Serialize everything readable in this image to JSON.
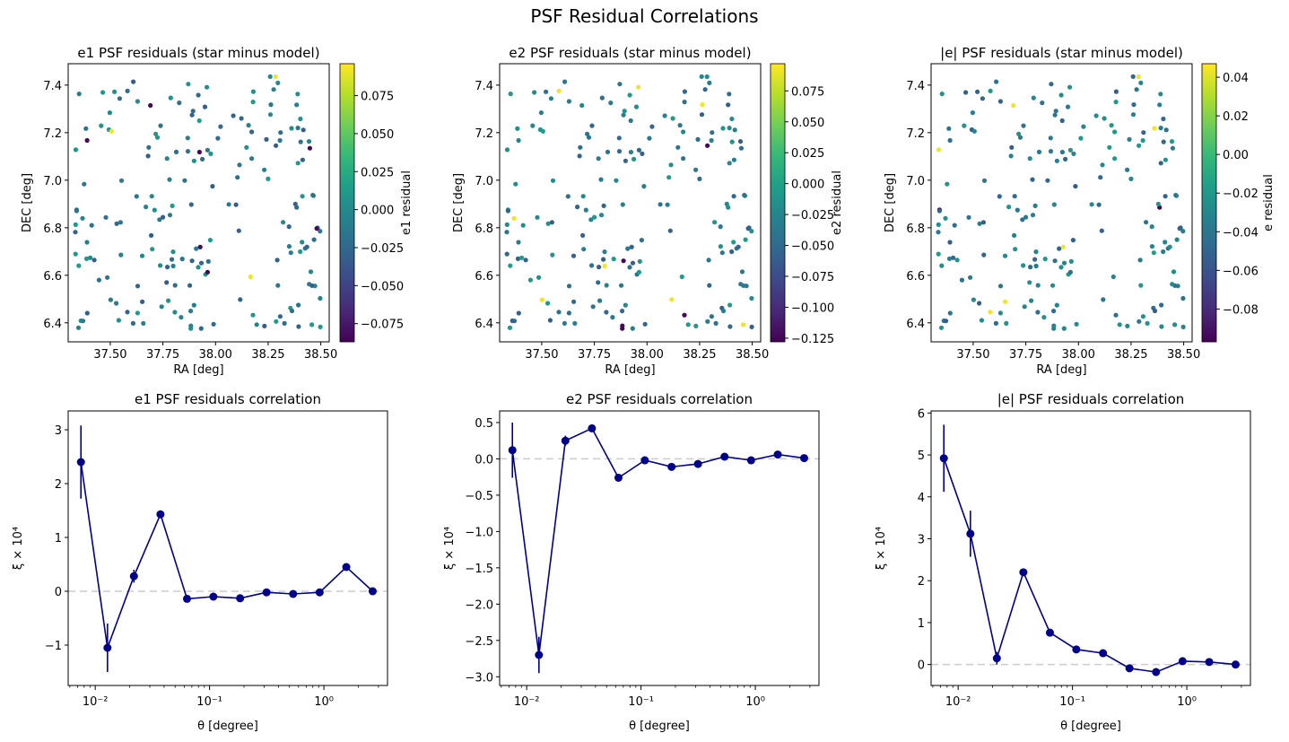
{
  "figure": {
    "suptitle": "PSF Residual Correlations"
  },
  "colormap": [
    "#440154",
    "#482878",
    "#3e4989",
    "#31688e",
    "#26828e",
    "#1f9e89",
    "#35b779",
    "#6ece58",
    "#b5de2b",
    "#fde725"
  ],
  "chart_data": [
    {
      "type": "scatter",
      "title": "e1 PSF residuals (star minus model)",
      "xlabel": "RA [deg]",
      "ylabel": "DEC [deg]",
      "xlim": [
        37.3,
        38.54
      ],
      "ylim": [
        6.32,
        7.49
      ],
      "xticks": [
        37.5,
        37.75,
        38.0,
        38.25,
        38.5
      ],
      "xtick_labels": [
        "37.50",
        "37.75",
        "38.00",
        "38.25",
        "38.50"
      ],
      "yticks": [
        6.4,
        6.6,
        6.8,
        7.0,
        7.2,
        7.4
      ],
      "ytick_labels": [
        "6.4",
        "6.6",
        "6.8",
        "7.0",
        "7.2",
        "7.4"
      ],
      "colorbar": {
        "label": "e1 residual",
        "range": [
          -0.087,
          0.096
        ],
        "ticks": [
          -0.075,
          -0.05,
          -0.025,
          0.0,
          0.025,
          0.05,
          0.075
        ],
        "tick_labels": [
          "−0.075",
          "−0.050",
          "−0.025",
          "0.000",
          "0.025",
          "0.050",
          "0.075"
        ]
      }
    },
    {
      "type": "scatter",
      "title": "e2 PSF residuals (star minus model)",
      "xlabel": "RA [deg]",
      "ylabel": "DEC [deg]",
      "xlim": [
        37.3,
        38.54
      ],
      "ylim": [
        6.32,
        7.49
      ],
      "xticks": [
        37.5,
        37.75,
        38.0,
        38.25,
        38.5
      ],
      "xtick_labels": [
        "37.50",
        "37.75",
        "38.00",
        "38.25",
        "38.50"
      ],
      "yticks": [
        6.4,
        6.6,
        6.8,
        7.0,
        7.2,
        7.4
      ],
      "ytick_labels": [
        "6.4",
        "6.6",
        "6.8",
        "7.0",
        "7.2",
        "7.4"
      ],
      "colorbar": {
        "label": "e2 residual",
        "range": [
          -0.128,
          0.097
        ],
        "ticks": [
          -0.125,
          -0.1,
          -0.075,
          -0.05,
          -0.025,
          0.0,
          0.025,
          0.05,
          0.075
        ],
        "tick_labels": [
          "−0.125",
          "−0.100",
          "−0.075",
          "−0.050",
          "−0.025",
          "0.000",
          "0.025",
          "0.050",
          "0.075"
        ]
      }
    },
    {
      "type": "scatter",
      "title": "|e| PSF residuals (star minus model)",
      "xlabel": "RA [deg]",
      "ylabel": "DEC [deg]",
      "xlim": [
        37.3,
        38.54
      ],
      "ylim": [
        6.32,
        7.49
      ],
      "xticks": [
        37.5,
        37.75,
        38.0,
        38.25,
        38.5
      ],
      "xtick_labels": [
        "37.50",
        "37.75",
        "38.00",
        "38.25",
        "38.50"
      ],
      "yticks": [
        6.4,
        6.6,
        6.8,
        7.0,
        7.2,
        7.4
      ],
      "ytick_labels": [
        "6.4",
        "6.6",
        "6.8",
        "7.0",
        "7.2",
        "7.4"
      ],
      "colorbar": {
        "label": "e residual",
        "range": [
          -0.097,
          0.047
        ],
        "ticks": [
          -0.08,
          -0.06,
          -0.04,
          -0.02,
          0.0,
          0.02,
          0.04
        ],
        "tick_labels": [
          "−0.08",
          "−0.06",
          "−0.04",
          "−0.02",
          "0.00",
          "0.02",
          "0.04"
        ]
      }
    },
    {
      "type": "line",
      "title": "e1 PSF residuals correlation",
      "xlabel": "θ [degree]",
      "ylabel": "ξ × 10⁴",
      "xscale": "log",
      "xlim": [
        0.0058,
        3.6
      ],
      "ylim": [
        -1.75,
        3.35
      ],
      "xticks": [
        0.01,
        0.1,
        1.0
      ],
      "xtick_labels": [
        "10⁻²",
        "10⁻¹",
        "10⁰"
      ],
      "yticks": [
        -1,
        0,
        1,
        2,
        3
      ],
      "ytick_labels": [
        "−1",
        "0",
        "1",
        "2",
        "3"
      ],
      "x": [
        0.0075,
        0.0128,
        0.0218,
        0.0372,
        0.0635,
        0.108,
        0.185,
        0.315,
        0.538,
        0.918,
        1.57,
        2.67
      ],
      "y": [
        2.4,
        -1.05,
        0.28,
        1.43,
        -0.14,
        -0.1,
        -0.13,
        -0.02,
        -0.05,
        -0.02,
        0.45,
        0.0
      ],
      "yerr": [
        0.68,
        0.45,
        0.12,
        0.05,
        0.04,
        0.04,
        0.04,
        0.04,
        0.04,
        0.04,
        0.04,
        0.07
      ],
      "reference_line": 0
    },
    {
      "type": "line",
      "title": "e2 PSF residuals correlation",
      "xlabel": "θ [degree]",
      "ylabel": "ξ × 10⁴",
      "xscale": "log",
      "xlim": [
        0.0058,
        3.6
      ],
      "ylim": [
        -3.12,
        0.66
      ],
      "xticks": [
        0.01,
        0.1,
        1.0
      ],
      "xtick_labels": [
        "10⁻²",
        "10⁻¹",
        "10⁰"
      ],
      "yticks": [
        -3.0,
        -2.5,
        -2.0,
        -1.5,
        -1.0,
        -0.5,
        0.0,
        0.5
      ],
      "ytick_labels": [
        "−3.0",
        "−2.5",
        "−2.0",
        "−1.5",
        "−1.0",
        "−0.5",
        "0.0",
        "0.5"
      ],
      "x": [
        0.0075,
        0.0128,
        0.0218,
        0.0372,
        0.0635,
        0.108,
        0.185,
        0.315,
        0.538,
        0.918,
        1.57,
        2.67
      ],
      "y": [
        0.12,
        -2.7,
        0.25,
        0.42,
        -0.26,
        -0.02,
        -0.11,
        -0.07,
        0.03,
        -0.02,
        0.06,
        0.01
      ],
      "yerr": [
        0.38,
        0.25,
        0.07,
        0.03,
        0.03,
        0.03,
        0.03,
        0.03,
        0.03,
        0.03,
        0.03,
        0.04
      ],
      "reference_line": 0
    },
    {
      "type": "line",
      "title": "|e| PSF residuals correlation",
      "xlabel": "θ [degree]",
      "ylabel": "ξ × 10⁴",
      "xscale": "log",
      "xlim": [
        0.0058,
        3.6
      ],
      "ylim": [
        -0.5,
        6.05
      ],
      "xticks": [
        0.01,
        0.1,
        1.0
      ],
      "xtick_labels": [
        "10⁻²",
        "10⁻¹",
        "10⁰"
      ],
      "yticks": [
        0,
        1,
        2,
        3,
        4,
        5,
        6
      ],
      "ytick_labels": [
        "0",
        "1",
        "2",
        "3",
        "4",
        "5",
        "6"
      ],
      "x": [
        0.0075,
        0.0128,
        0.0218,
        0.0372,
        0.0635,
        0.108,
        0.185,
        0.315,
        0.538,
        0.918,
        1.57,
        2.67
      ],
      "y": [
        4.92,
        3.12,
        0.15,
        2.2,
        0.76,
        0.36,
        0.27,
        -0.09,
        -0.18,
        0.08,
        0.06,
        0.0
      ],
      "yerr": [
        0.8,
        0.55,
        0.15,
        0.05,
        0.05,
        0.05,
        0.05,
        0.05,
        0.05,
        0.05,
        0.05,
        0.06
      ],
      "reference_line": 0
    }
  ]
}
